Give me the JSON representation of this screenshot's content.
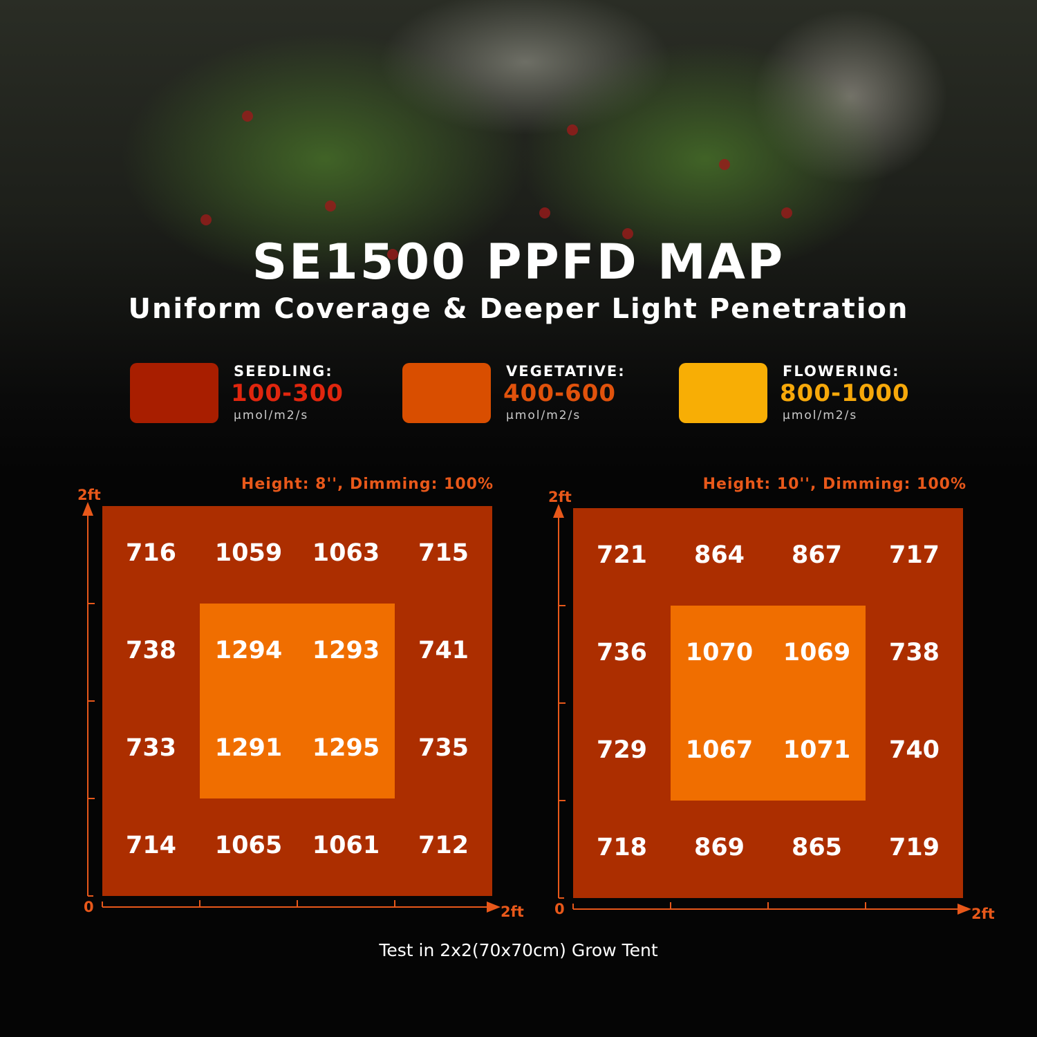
{
  "header": {
    "title": "SE1500 PPFD MAP",
    "subtitle": "Uniform Coverage & Deeper Light Penetration"
  },
  "legend": [
    {
      "name": "SEEDLING:",
      "range": "100-300",
      "unit": "μmol/m2/s",
      "color": "#a81e00",
      "text_color": "#e0260e"
    },
    {
      "name": "VEGETATIVE:",
      "range": "400-600",
      "unit": "μmol/m2/s",
      "color": "#d94e00",
      "text_color": "#e0520c"
    },
    {
      "name": "FLOWERING:",
      "range": "800-1000",
      "unit": "μmol/m2/s",
      "color": "#f8ae05",
      "text_color": "#f6a80a"
    }
  ],
  "chart_data": [
    {
      "type": "heatmap",
      "title": "Height: 8'', Dimming: 100%",
      "x_ticks": [
        "0",
        "2ft"
      ],
      "y_ticks": [
        "0",
        "2ft"
      ],
      "xlim": [
        0,
        2
      ],
      "ylim": [
        0,
        2
      ],
      "grid": [
        4,
        4
      ],
      "values": [
        [
          716,
          1059,
          1063,
          715
        ],
        [
          738,
          1294,
          1293,
          741
        ],
        [
          733,
          1291,
          1295,
          735
        ],
        [
          714,
          1065,
          1061,
          712
        ]
      ],
      "colors": {
        "outer": "#ac2e00",
        "center": "#f06e00"
      }
    },
    {
      "type": "heatmap",
      "title": "Height: 10'', Dimming: 100%",
      "x_ticks": [
        "0",
        "2ft"
      ],
      "y_ticks": [
        "0",
        "2ft"
      ],
      "xlim": [
        0,
        2
      ],
      "ylim": [
        0,
        2
      ],
      "grid": [
        4,
        4
      ],
      "values": [
        [
          721,
          864,
          867,
          717
        ],
        [
          736,
          1070,
          1069,
          738
        ],
        [
          729,
          1067,
          1071,
          740
        ],
        [
          718,
          869,
          865,
          719
        ]
      ],
      "colors": {
        "outer": "#ac2e00",
        "center": "#f06e00"
      }
    }
  ],
  "footer": "Test in 2x2(70x70cm) Grow Tent",
  "axis_color": "#e8581a"
}
